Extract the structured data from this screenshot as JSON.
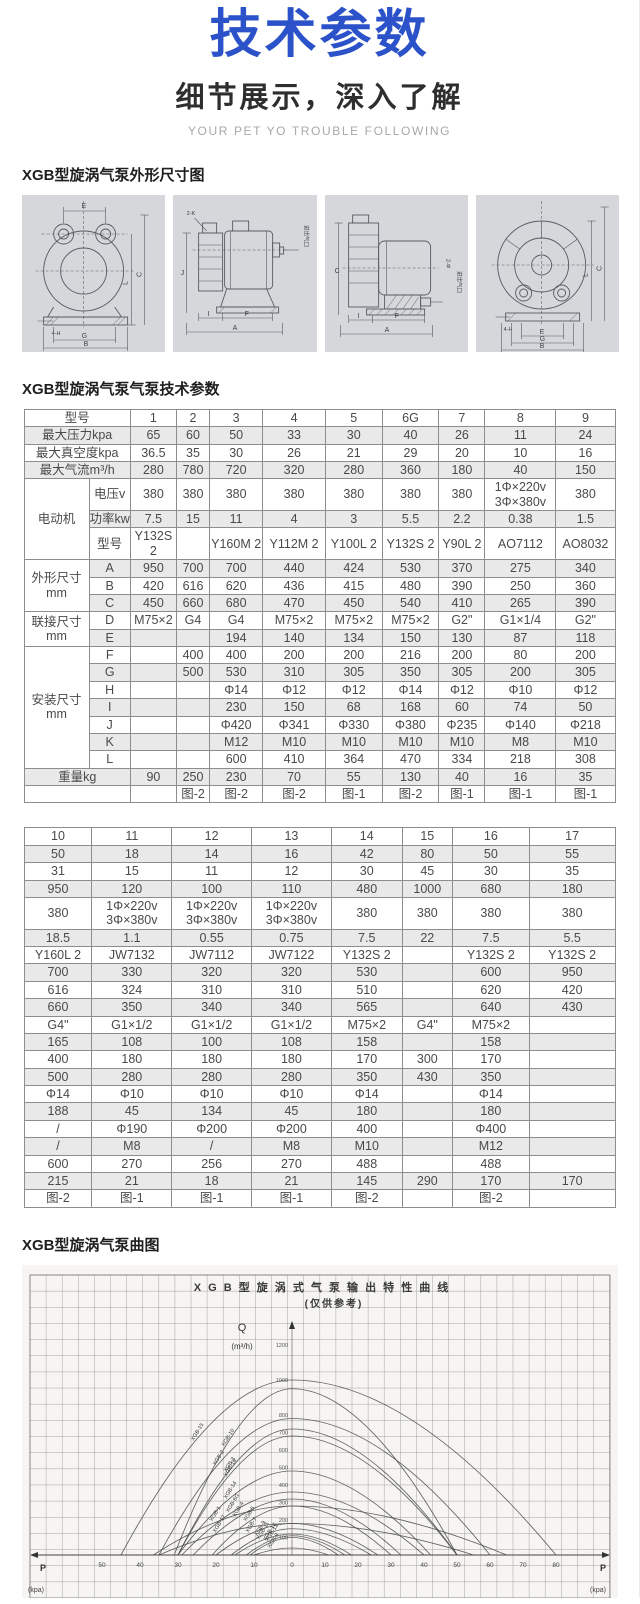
{
  "header": {
    "title": "技术参数",
    "subtitle": "细节展示，深入了解",
    "tagline": "YOUR PET YO TROUBLE FOLLOWING",
    "accent_color": "#2b52c8"
  },
  "drawings": {
    "heading": "XGB型旋涡气泵外形尺寸图",
    "panels": [
      {
        "name": "front-view",
        "dims": {
          "top": "E",
          "l": "L",
          "c": "C",
          "holes": "4-H",
          "g": "G",
          "b": "B"
        }
      },
      {
        "name": "side-view-a",
        "dims": {
          "corner": "2-K",
          "j": "J",
          "i": "I",
          "f": "F",
          "a": "A",
          "port": "进出气口"
        }
      },
      {
        "name": "side-view-b",
        "dims": {
          "left": "C",
          "phi": "2-Φ",
          "port": "进出气口",
          "i": "I",
          "f": "F",
          "a": "A"
        }
      },
      {
        "name": "rear-view",
        "dims": {
          "l": "L",
          "c": "C",
          "holes": "4-H",
          "e": "E",
          "g": "G",
          "b": "B"
        }
      }
    ]
  },
  "specs": {
    "heading": "XGB型旋涡气泵气泵技术参数",
    "table1": {
      "rows": [
        {
          "label": "型号",
          "span": 2,
          "cells": [
            "1",
            "2",
            "3",
            "4",
            "5",
            "6G",
            "7",
            "8",
            "9"
          ]
        },
        {
          "label": "最大压力kpa",
          "span": 2,
          "cells": [
            "65",
            "60",
            "50",
            "33",
            "30",
            "40",
            "26",
            "11",
            "24"
          ]
        },
        {
          "label": "最大真空度kpa",
          "span": 2,
          "cells": [
            "36.5",
            "35",
            "30",
            "26",
            "21",
            "29",
            "20",
            "10",
            "16"
          ]
        },
        {
          "label": "最大气流m³/h",
          "span": 2,
          "cells": [
            "280",
            "780",
            "720",
            "320",
            "280",
            "360",
            "180",
            "40",
            "150"
          ]
        },
        {
          "group": "电动机",
          "grouprows": 3,
          "sublabel": "电压v",
          "cells": [
            "380",
            "380",
            "380",
            "380",
            "380",
            "380",
            "380",
            "1Φ×220v\n3Φ×380v",
            "380"
          ]
        },
        {
          "sublabel": "功率kw",
          "cells": [
            "7.5",
            "15",
            "11",
            "4",
            "3",
            "5.5",
            "2.2",
            "0.38",
            "1.5"
          ]
        },
        {
          "sublabel": "型号",
          "cells": [
            "Y132S 2",
            "",
            "Y160M 2",
            "Y112M 2",
            "Y100L 2",
            "Y132S 2",
            "Y90L 2",
            "AO7112",
            "AO8032"
          ]
        },
        {
          "group": "外形尺寸mm",
          "grouprows": 3,
          "sublabel": "A",
          "cells": [
            "950",
            "700",
            "700",
            "440",
            "424",
            "530",
            "370",
            "275",
            "340"
          ]
        },
        {
          "sublabel": "B",
          "cells": [
            "420",
            "616",
            "620",
            "436",
            "415",
            "480",
            "390",
            "250",
            "360"
          ]
        },
        {
          "sublabel": "C",
          "cells": [
            "450",
            "660",
            "680",
            "470",
            "450",
            "540",
            "410",
            "265",
            "390"
          ]
        },
        {
          "group": "联接尺寸mm",
          "grouprows": 2,
          "sublabel": "D",
          "cells": [
            "M75×2",
            "G4",
            "G4",
            "M75×2",
            "M75×2",
            "M75×2",
            "G2\"",
            "G1×1/4",
            "G2\""
          ]
        },
        {
          "sublabel": "E",
          "cells": [
            "",
            "",
            "194",
            "140",
            "134",
            "150",
            "130",
            "87",
            "118"
          ]
        },
        {
          "group": "安装尺寸mm",
          "grouprows": 7,
          "sublabel": "F",
          "cells": [
            "",
            "400",
            "400",
            "200",
            "200",
            "216",
            "200",
            "80",
            "200"
          ]
        },
        {
          "sublabel": "G",
          "cells": [
            "",
            "500",
            "530",
            "310",
            "305",
            "350",
            "305",
            "200",
            "305"
          ]
        },
        {
          "sublabel": "H",
          "cells": [
            "",
            "",
            "Φ14",
            "Φ12",
            "Φ12",
            "Φ14",
            "Φ12",
            "Φ10",
            "Φ12"
          ]
        },
        {
          "sublabel": "I",
          "cells": [
            "",
            "",
            "230",
            "150",
            "68",
            "168",
            "60",
            "74",
            "50"
          ]
        },
        {
          "sublabel": "J",
          "cells": [
            "",
            "",
            "Φ420",
            "Φ341",
            "Φ330",
            "Φ380",
            "Φ235",
            "Φ140",
            "Φ218"
          ]
        },
        {
          "sublabel": "K",
          "cells": [
            "",
            "",
            "M12",
            "M10",
            "M10",
            "M10",
            "M10",
            "M8",
            "M10"
          ]
        },
        {
          "sublabel": "L",
          "cells": [
            "",
            "",
            "600",
            "410",
            "364",
            "470",
            "334",
            "218",
            "308"
          ]
        },
        {
          "label": "重量kg",
          "span": 2,
          "cells": [
            "90",
            "250",
            "230",
            "70",
            "55",
            "130",
            "40",
            "16",
            "35"
          ]
        },
        {
          "label": "",
          "span": 2,
          "cells": [
            "",
            "图-2",
            "图-2",
            "图-2",
            "图-1",
            "图-2",
            "图-1",
            "图-1",
            "图-1"
          ]
        }
      ]
    },
    "table2": {
      "rows": [
        [
          "10",
          "11",
          "12",
          "13",
          "14",
          "15",
          "16",
          "17"
        ],
        [
          "50",
          "18",
          "14",
          "16",
          "42",
          "80",
          "50",
          "55"
        ],
        [
          "31",
          "15",
          "11",
          "12",
          "30",
          "45",
          "30",
          "35"
        ],
        [
          "950",
          "120",
          "100",
          "110",
          "480",
          "1000",
          "680",
          "180"
        ],
        [
          "380",
          "1Φ×220v\n3Φ×380v",
          "1Φ×220v\n3Φ×380v",
          "1Φ×220v\n3Φ×380v",
          "380",
          "380",
          "380",
          "380"
        ],
        [
          "18.5",
          "1.1",
          "0.55",
          "0.75",
          "7.5",
          "22",
          "7.5",
          "5.5"
        ],
        [
          "Y160L 2",
          "JW7132",
          "JW7112",
          "JW7122",
          "Y132S 2",
          "",
          "Y132S 2",
          "Y132S 2"
        ],
        [
          "700",
          "330",
          "320",
          "320",
          "530",
          "",
          "600",
          "950"
        ],
        [
          "616",
          "324",
          "310",
          "310",
          "510",
          "",
          "620",
          "420"
        ],
        [
          "660",
          "350",
          "340",
          "340",
          "565",
          "",
          "640",
          "430"
        ],
        [
          "G4\"",
          "G1×1/2",
          "G1×1/2",
          "G1×1/2",
          "M75×2",
          "G4\"",
          "M75×2",
          ""
        ],
        [
          "165",
          "108",
          "100",
          "108",
          "158",
          "",
          "158",
          ""
        ],
        [
          "400",
          "180",
          "180",
          "180",
          "170",
          "300",
          "170",
          ""
        ],
        [
          "500",
          "280",
          "280",
          "280",
          "350",
          "430",
          "350",
          ""
        ],
        [
          "Φ14",
          "Φ10",
          "Φ10",
          "Φ10",
          "Φ14",
          "",
          "Φ14",
          ""
        ],
        [
          "188",
          "45",
          "134",
          "45",
          "180",
          "",
          "180",
          ""
        ],
        [
          "/",
          "Φ190",
          "Φ200",
          "Φ200",
          "400",
          "",
          "Φ400",
          ""
        ],
        [
          "/",
          "M8",
          "/",
          "M8",
          "M10",
          "",
          "M12",
          ""
        ],
        [
          "600",
          "270",
          "256",
          "270",
          "488",
          "",
          "488",
          ""
        ],
        [
          "215",
          "21",
          "18",
          "21",
          "145",
          "290",
          "170",
          "170"
        ],
        [
          "图-2",
          "图-1",
          "图-1",
          "图-1",
          "图-2",
          "",
          "图-2",
          ""
        ]
      ]
    }
  },
  "curve_section": {
    "heading": "XGB型旋涡气泵曲图"
  },
  "chart_data": {
    "type": "line",
    "title": "X G B 型 旋 涡 式 气 泵 输 出 特 性 曲 线",
    "subtitle": "(仅供参考)",
    "y_letter": "Q",
    "y_unit": "(m³/h)",
    "x_letter": "P",
    "x_unit": "(kpa)",
    "grid": true,
    "y_ticks": [
      1200,
      1000,
      800,
      700,
      600,
      500,
      400,
      300,
      200,
      100
    ],
    "x_left_ticks": [
      50,
      40,
      30,
      20,
      10
    ],
    "x_center_tick": "0",
    "x_right_ticks": [
      10,
      20,
      30,
      40,
      50,
      60,
      70,
      80
    ],
    "x_axis_note": "left of 0 = vacuum (kpa), right of 0 = pressure (kpa)",
    "series": [
      {
        "name": "XGB-1",
        "vacuum_kpa": 36.5,
        "max_flow_m3h": 280,
        "pressure_kpa": 65
      },
      {
        "name": "XGB-2",
        "vacuum_kpa": 35,
        "max_flow_m3h": 780,
        "pressure_kpa": 60
      },
      {
        "name": "XGB-3",
        "vacuum_kpa": 30,
        "max_flow_m3h": 720,
        "pressure_kpa": 50
      },
      {
        "name": "XGB-4",
        "vacuum_kpa": 26,
        "max_flow_m3h": 320,
        "pressure_kpa": 33
      },
      {
        "name": "XGB-5",
        "vacuum_kpa": 21,
        "max_flow_m3h": 280,
        "pressure_kpa": 30
      },
      {
        "name": "XGB-6G",
        "vacuum_kpa": 29,
        "max_flow_m3h": 360,
        "pressure_kpa": 40
      },
      {
        "name": "XGB-7",
        "vacuum_kpa": 20,
        "max_flow_m3h": 180,
        "pressure_kpa": 26
      },
      {
        "name": "XGB-8",
        "vacuum_kpa": 10,
        "max_flow_m3h": 40,
        "pressure_kpa": 11
      },
      {
        "name": "XGB-9",
        "vacuum_kpa": 16,
        "max_flow_m3h": 150,
        "pressure_kpa": 24
      },
      {
        "name": "XGB-10",
        "vacuum_kpa": 31,
        "max_flow_m3h": 950,
        "pressure_kpa": 50
      },
      {
        "name": "XGB-11",
        "vacuum_kpa": 15,
        "max_flow_m3h": 120,
        "pressure_kpa": 18
      },
      {
        "name": "XGB-12",
        "vacuum_kpa": 11,
        "max_flow_m3h": 100,
        "pressure_kpa": 14
      },
      {
        "name": "XGB-13",
        "vacuum_kpa": 12,
        "max_flow_m3h": 110,
        "pressure_kpa": 16
      },
      {
        "name": "XGB-14",
        "vacuum_kpa": 30,
        "max_flow_m3h": 480,
        "pressure_kpa": 42
      },
      {
        "name": "XGB-15",
        "vacuum_kpa": 45,
        "max_flow_m3h": 1000,
        "pressure_kpa": 80
      },
      {
        "name": "XGB-16",
        "vacuum_kpa": 30,
        "max_flow_m3h": 680,
        "pressure_kpa": 50
      },
      {
        "name": "XGB-17",
        "vacuum_kpa": 35,
        "max_flow_m3h": 180,
        "pressure_kpa": 55
      }
    ]
  }
}
